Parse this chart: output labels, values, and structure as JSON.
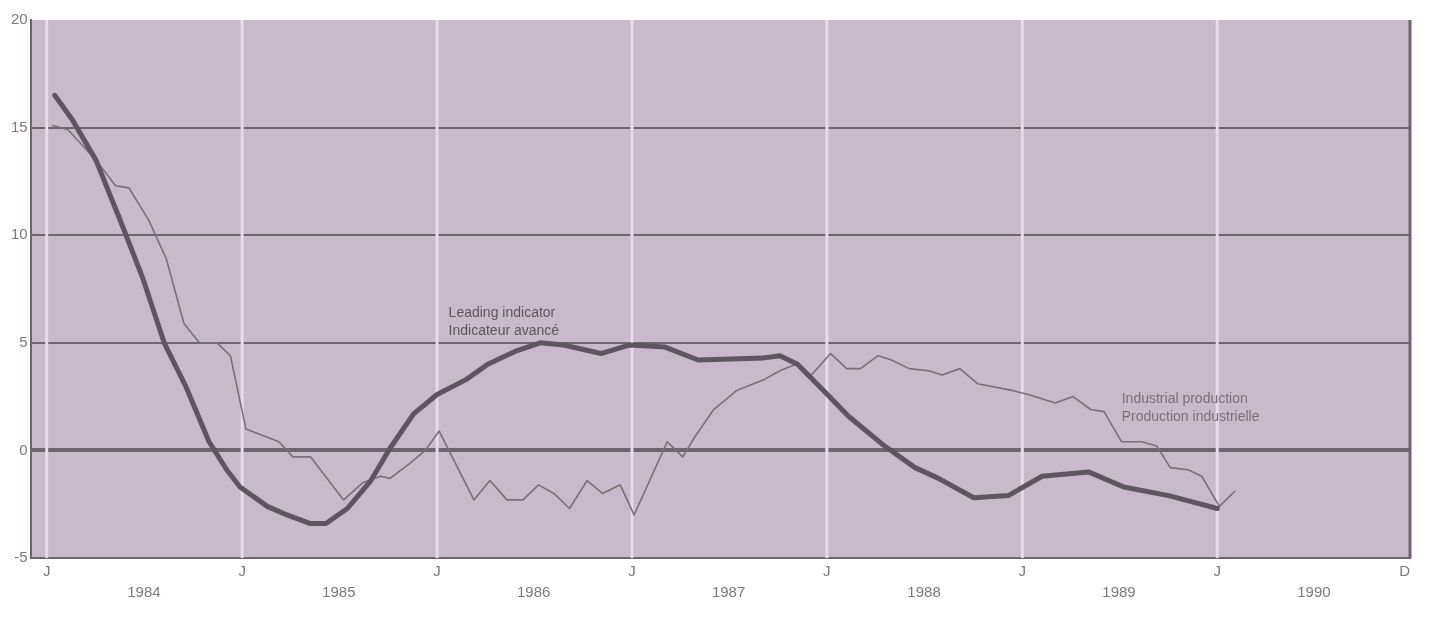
{
  "chart_data": {
    "type": "line",
    "xlim": [
      "1983-12-02",
      "1990-12-28"
    ],
    "ylim": [
      -5,
      20
    ],
    "xticks": [
      {
        "value": "1984-07-01",
        "label": "1984"
      },
      {
        "value": "1985-07-01",
        "label": "1985"
      },
      {
        "value": "1986-07-01",
        "label": "1986"
      },
      {
        "value": "1987-07-01",
        "label": "1987"
      },
      {
        "value": "1988-07-01",
        "label": "1988"
      },
      {
        "value": "1989-07-01",
        "label": "1989"
      },
      {
        "value": "1990-07-01",
        "label": "1990"
      }
    ],
    "ref_lines": [
      {
        "axis": "x",
        "value": "1984-01-01",
        "label": "J",
        "color": "#e4dce6"
      },
      {
        "axis": "x",
        "value": "1985-01-01",
        "label": "J",
        "color": "#e4dce6"
      },
      {
        "axis": "x",
        "value": "1986-01-01",
        "label": "J",
        "color": "#e4dce6"
      },
      {
        "axis": "x",
        "value": "1987-01-01",
        "label": "J",
        "color": "#e4dce6"
      },
      {
        "axis": "x",
        "value": "1988-01-01",
        "label": "J",
        "color": "#e4dce6"
      },
      {
        "axis": "x",
        "value": "1989-01-01",
        "label": "J",
        "color": "#e4dce6"
      },
      {
        "axis": "x",
        "value": "1990-01-01",
        "label": "J",
        "color": "#e4dce6"
      },
      {
        "axis": "x",
        "value": "1990-12-28",
        "label": "D",
        "color": "#6e6470"
      }
    ],
    "yticks": [
      -5,
      0,
      5,
      10,
      15,
      20
    ],
    "grid": "y",
    "legend": false,
    "marker": "none",
    "line_style": "solid",
    "series": [
      {
        "name": "Leading indicator\nIndicateur avancé",
        "color": "#5e5560",
        "x": [
          "1984-01-16",
          "1984-02-17",
          "1984-04-02",
          "1984-05-16",
          "1984-06-29",
          "1984-08-08",
          "1984-09-17",
          "1984-10-31",
          "1984-12-03",
          "1984-12-28",
          "1985-02-17",
          "1985-03-26",
          "1985-05-09",
          "1985-06-07",
          "1985-07-17",
          "1985-08-30",
          "1985-10-05",
          "1985-11-18",
          "1986-01-01",
          "1986-02-25",
          "1986-04-06",
          "1986-05-27",
          "1986-07-13",
          "1986-08-26",
          "1986-11-04",
          "1986-12-28",
          "1987-03-04",
          "1987-05-05",
          "1987-09-06",
          "1987-10-05",
          "1987-11-07",
          "1987-12-21",
          "1988-02-10",
          "1988-04-13",
          "1988-06-14",
          "1988-07-28",
          "1988-10-02",
          "1988-12-06",
          "1989-02-07",
          "1989-05-05",
          "1989-07-10",
          "1989-10-02",
          "1990-01-01"
        ],
        "values": [
          16.5,
          15.4,
          13.5,
          10.8,
          8.0,
          5.0,
          3.0,
          0.4,
          -0.9,
          -1.7,
          -2.6,
          -3.0,
          -3.4,
          -3.4,
          -2.7,
          -1.4,
          0.1,
          1.7,
          2.6,
          3.3,
          4.0,
          4.6,
          5.0,
          4.9,
          4.5,
          4.9,
          4.8,
          4.2,
          4.3,
          4.4,
          4.0,
          2.9,
          1.6,
          0.3,
          -0.8,
          -1.3,
          -2.2,
          -2.1,
          -1.2,
          -1.0,
          -1.7,
          -2.1,
          -2.7
        ]
      },
      {
        "name": "Industrial production\nProduction industrielle",
        "color": "#7a6f78",
        "x": [
          "1984-01-12",
          "1984-02-10",
          "1984-04-02",
          "1984-05-09",
          "1984-06-03",
          "1984-07-10",
          "1984-08-12",
          "1984-09-14",
          "1984-10-13",
          "1984-11-15",
          "1984-12-10",
          "1985-01-08",
          "1985-03-11",
          "1985-04-06",
          "1985-05-09",
          "1985-07-10",
          "1985-08-15",
          "1985-09-17",
          "1985-10-05",
          "1985-11-11",
          "1985-12-10",
          "1986-01-05",
          "1986-03-11",
          "1986-04-10",
          "1986-05-12",
          "1986-06-11",
          "1986-07-10",
          "1986-08-08",
          "1986-09-06",
          "1986-10-09",
          "1986-11-07",
          "1986-12-10",
          "1987-01-05",
          "1987-03-08",
          "1987-04-06",
          "1987-04-28",
          "1987-06-03",
          "1987-07-17",
          "1987-09-06",
          "1987-10-05",
          "1987-11-04",
          "1987-12-03",
          "1988-01-08",
          "1988-02-07",
          "1988-03-04",
          "1988-04-06",
          "1988-05-01",
          "1988-06-03",
          "1988-07-10",
          "1988-08-04",
          "1988-09-06",
          "1988-10-09",
          "1988-12-10",
          "1989-01-12",
          "1989-03-04",
          "1989-04-06",
          "1989-05-09",
          "1989-06-03",
          "1989-07-06",
          "1989-08-12",
          "1989-09-10",
          "1989-10-05",
          "1989-11-07",
          "1989-12-03",
          "1990-01-05",
          "1990-02-03"
        ],
        "values": [
          15.1,
          14.9,
          13.5,
          12.3,
          12.2,
          10.7,
          8.9,
          5.9,
          5.0,
          5.0,
          4.4,
          1.0,
          0.4,
          -0.3,
          -0.3,
          -2.3,
          -1.5,
          -1.2,
          -1.3,
          -0.6,
          0.0,
          0.9,
          -2.3,
          -1.4,
          -2.3,
          -2.3,
          -1.6,
          -2.0,
          -2.7,
          -1.4,
          -2.0,
          -1.6,
          -3.0,
          0.4,
          -0.3,
          0.6,
          1.9,
          2.8,
          3.3,
          3.7,
          4.0,
          3.5,
          4.5,
          3.8,
          3.8,
          4.4,
          4.2,
          3.8,
          3.7,
          3.5,
          3.8,
          3.1,
          2.8,
          2.6,
          2.2,
          2.5,
          1.9,
          1.8,
          0.4,
          0.4,
          0.2,
          -0.8,
          -0.9,
          -1.2,
          -2.6,
          -1.9
        ]
      }
    ]
  }
}
